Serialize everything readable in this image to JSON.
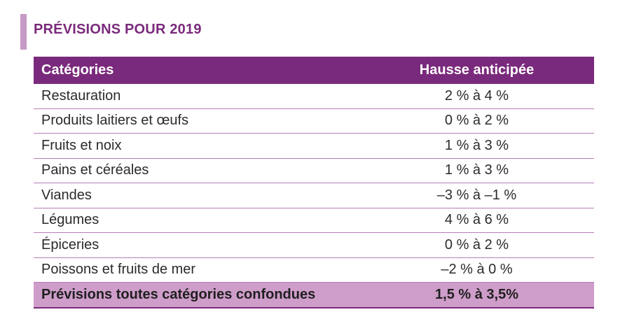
{
  "title": "PRÉVISIONS POUR 2019",
  "colors": {
    "accent": "#7a2a7c",
    "title_bar": "#c69bc5",
    "total_row": "#cf9dca",
    "divider": "#b57db6"
  },
  "table": {
    "headers": {
      "category": "Catégories",
      "value": "Hausse anticipée"
    },
    "rows": [
      {
        "category": "Restauration",
        "value": "2 % à 4 %"
      },
      {
        "category": "Produits laitiers et œufs",
        "value": "0 % à 2 %"
      },
      {
        "category": "Fruits et noix",
        "value": "1 % à 3 %"
      },
      {
        "category": "Pains et céréales",
        "value": "1 % à 3 %"
      },
      {
        "category": "Viandes",
        "value": "–3 % à –1 %"
      },
      {
        "category": "Légumes",
        "value": "4 % à 6 %"
      },
      {
        "category": "Épiceries",
        "value": "0 % à 2 %"
      },
      {
        "category": "Poissons et fruits de mer",
        "value": "–2 % à 0 %"
      }
    ],
    "total": {
      "category": "Prévisions toutes catégories confondues",
      "value": "1,5 % à 3,5%"
    }
  }
}
